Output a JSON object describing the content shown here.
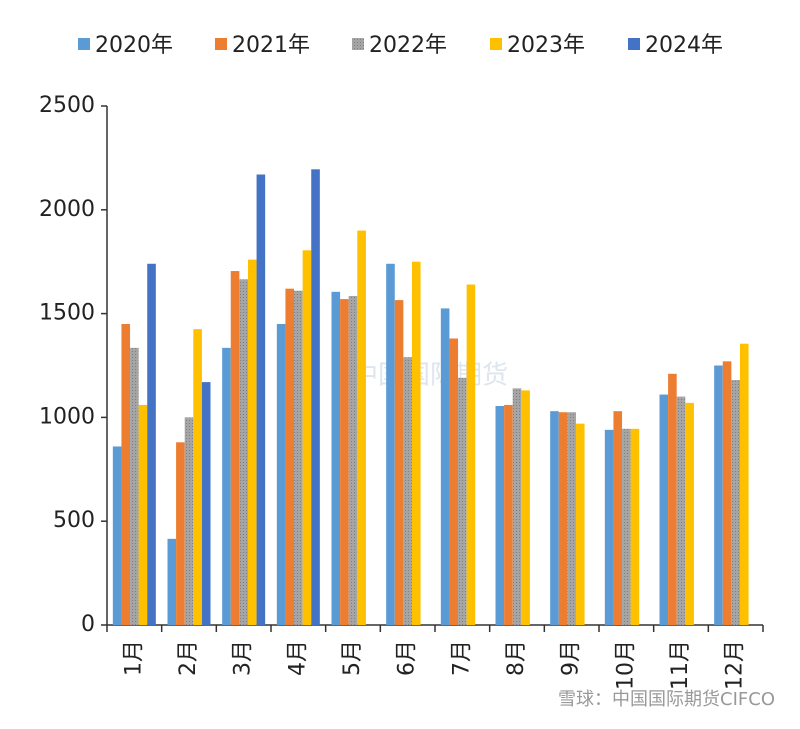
{
  "chart_data": {
    "type": "bar",
    "categories": [
      "1月",
      "2月",
      "3月",
      "4月",
      "5月",
      "6月",
      "7月",
      "8月",
      "9月",
      "10月",
      "11月",
      "12月"
    ],
    "series": [
      {
        "name": "2020年",
        "color": "#5b9bd5",
        "values": [
          860,
          415,
          1335,
          1450,
          1605,
          1740,
          1525,
          1055,
          1030,
          940,
          1110,
          1250
        ]
      },
      {
        "name": "2021年",
        "color": "#ed7d31",
        "values": [
          1450,
          880,
          1705,
          1620,
          1570,
          1565,
          1380,
          1060,
          1025,
          1030,
          1210,
          1270
        ]
      },
      {
        "name": "2022年",
        "color": "#a5a5a5",
        "values": [
          1335,
          1000,
          1665,
          1610,
          1585,
          1290,
          1190,
          1140,
          1025,
          945,
          1100,
          1180
        ]
      },
      {
        "name": "2023年",
        "color": "#ffc000",
        "values": [
          1060,
          1425,
          1760,
          1805,
          1900,
          1750,
          1640,
          1130,
          970,
          945,
          1070,
          1355
        ]
      },
      {
        "name": "2024年",
        "color": "#4472c4",
        "values": [
          1740,
          1170,
          2170,
          2195,
          null,
          null,
          null,
          null,
          null,
          null,
          null,
          null
        ]
      }
    ],
    "ylim": [
      0,
      2500
    ],
    "yticks": [
      0,
      500,
      1000,
      1500,
      2000,
      2500
    ],
    "grid": false,
    "legend": "top",
    "watermarks": [
      "中国国际期货",
      "雪球：中国国际期货CIFCO"
    ]
  }
}
